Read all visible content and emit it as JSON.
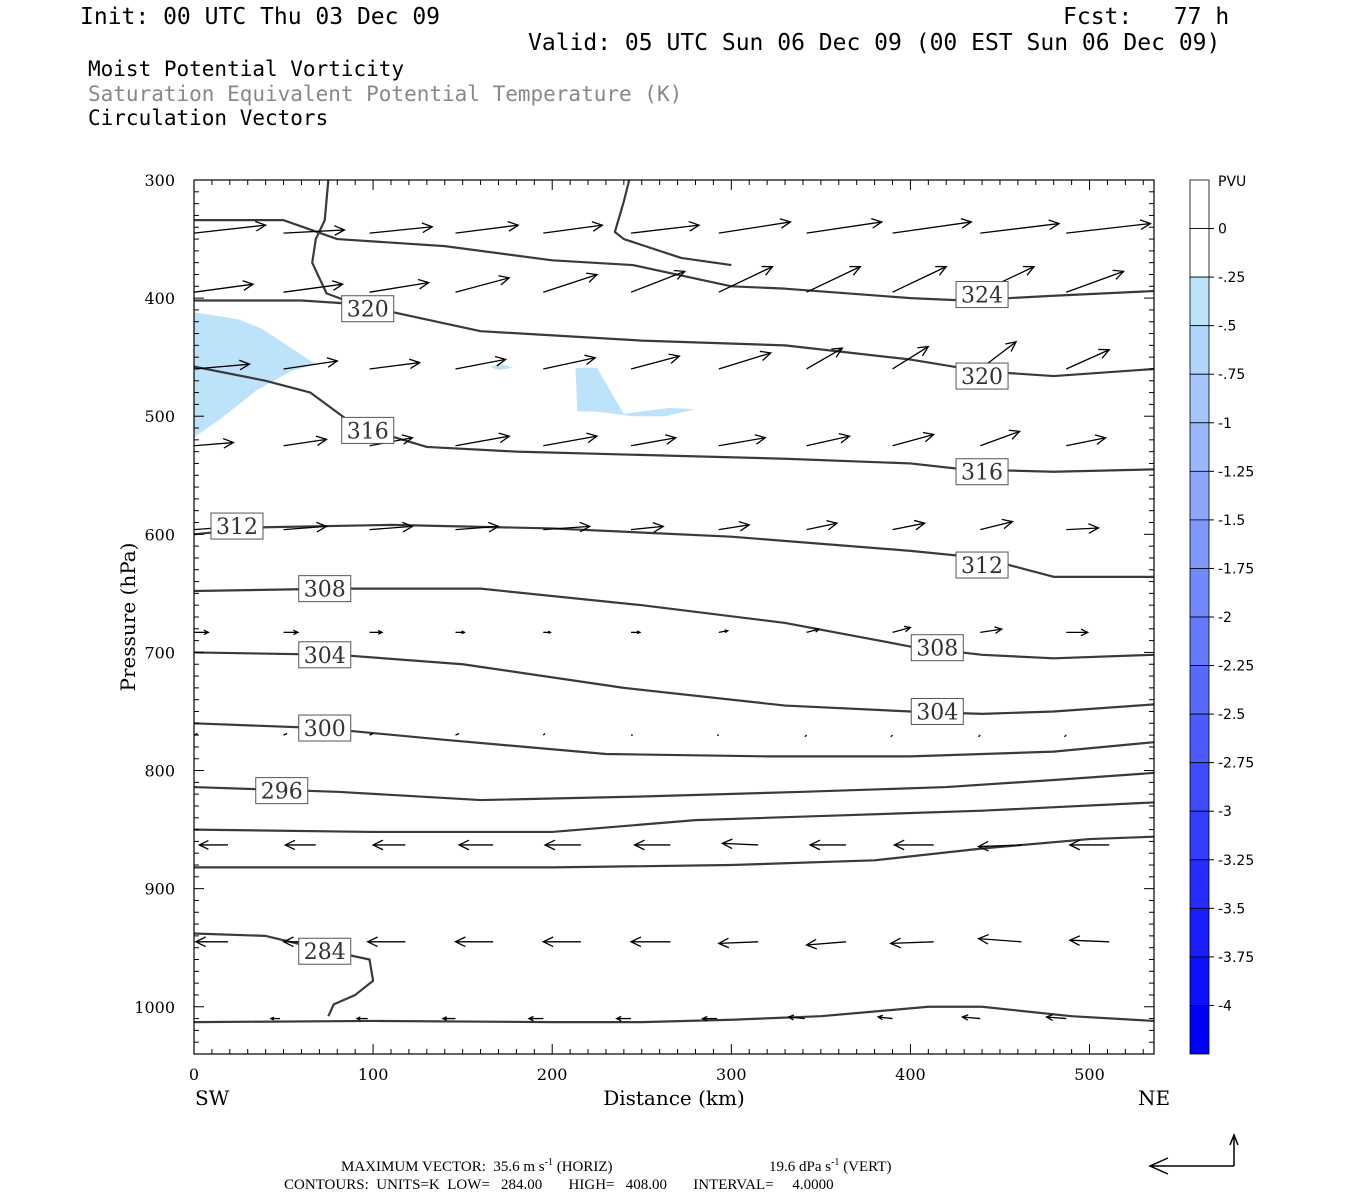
{
  "header": {
    "init": "Init: 00 UTC Thu 03 Dec 09",
    "fcst": "Fcst:   77 h",
    "valid": "Valid: 05 UTC Sun 06 Dec 09 (00 EST Sun 06 Dec 09)",
    "field1": "Moist Potential Vorticity",
    "field2": "Saturation Equivalent Potential Temperature (K)",
    "field3": "Circulation Vectors"
  },
  "footer": {
    "max_vector_prefix": "MAXIMUM VECTOR:  35.6 m s",
    "max_vector_horiz": " (HORIZ)",
    "max_vector_vert_prefix": "19.6 dPa s",
    "max_vector_vert": " (VERT)",
    "exponent": "-1",
    "contours": "CONTOURS:  UNITS=K  LOW=   284.00       HIGH=   408.00       INTERVAL=     4.0000"
  },
  "colors": {
    "contour": "#3a3a3a",
    "fill_light": "#bde3fb",
    "axis": "#000000",
    "colorbar_top": "#ffffff",
    "colorbar_bottom": "#0000ff"
  },
  "chart_data": {
    "type": "cross-section",
    "xlabel": "Distance (km)",
    "ylabel": "Pressure (hPa)",
    "xlim": [
      0,
      536
    ],
    "ylim": [
      1040,
      300
    ],
    "x_ticks": [
      "0",
      "100",
      "200",
      "300",
      "400",
      "500"
    ],
    "y_ticks": [
      "300",
      "400",
      "500",
      "600",
      "700",
      "800",
      "900",
      "1000"
    ],
    "left_end_label": "SW",
    "right_end_label": "NE",
    "colorbar": {
      "unit": "PVU",
      "labels": [
        "0",
        "-.25",
        "-.5",
        "-.75",
        "-1",
        "-1.25",
        "-1.5",
        "-1.75",
        "-2",
        "-2.25",
        "-2.5",
        "-2.75",
        "-3",
        "-3.25",
        "-3.5",
        "-3.75",
        "-4"
      ]
    },
    "contours": [
      {
        "label": "324",
        "points": [
          [
            0,
            334
          ],
          [
            50,
            334
          ],
          [
            80,
            350
          ],
          [
            140,
            356
          ],
          [
            200,
            368
          ],
          [
            245,
            372
          ],
          [
            300,
            390
          ],
          [
            330,
            392
          ],
          [
            400,
            400
          ],
          [
            430,
            402
          ],
          [
            480,
            398
          ],
          [
            536,
            394
          ]
        ],
        "label_at": [
          440,
          397
        ]
      },
      {
        "label": "320",
        "points": [
          [
            0,
            402
          ],
          [
            60,
            402
          ],
          [
            90,
            405
          ],
          [
            160,
            428
          ],
          [
            250,
            436
          ],
          [
            330,
            440
          ],
          [
            400,
            452
          ],
          [
            440,
            462
          ],
          [
            480,
            466
          ],
          [
            536,
            460
          ]
        ],
        "label_at": [
          440,
          466
        ],
        "label2_at": [
          97,
          409
        ]
      },
      {
        "label": "316",
        "points": [
          [
            0,
            458
          ],
          [
            40,
            470
          ],
          [
            65,
            480
          ],
          [
            90,
            508
          ],
          [
            130,
            526
          ],
          [
            180,
            530
          ],
          [
            330,
            536
          ],
          [
            400,
            540
          ],
          [
            430,
            545
          ],
          [
            480,
            547
          ],
          [
            536,
            545
          ]
        ],
        "label_at": [
          440,
          547
        ],
        "label2_at": [
          97,
          512
        ]
      },
      {
        "label": "312",
        "points": [
          [
            0,
            600
          ],
          [
            40,
            594
          ],
          [
            110,
            592
          ],
          [
            200,
            595
          ],
          [
            300,
            602
          ],
          [
            400,
            614
          ],
          [
            440,
            620
          ],
          [
            480,
            636
          ],
          [
            536,
            636
          ]
        ],
        "label_at": [
          440,
          626
        ],
        "label2_at": [
          24,
          593
        ]
      },
      {
        "label": "308",
        "points": [
          [
            0,
            648
          ],
          [
            80,
            646
          ],
          [
            160,
            646
          ],
          [
            250,
            660
          ],
          [
            330,
            675
          ],
          [
            400,
            695
          ],
          [
            440,
            702
          ],
          [
            480,
            705
          ],
          [
            536,
            702
          ]
        ],
        "label_at": [
          415,
          696
        ],
        "label2_at": [
          73,
          646
        ]
      },
      {
        "label": "304",
        "points": [
          [
            0,
            700
          ],
          [
            80,
            702
          ],
          [
            150,
            710
          ],
          [
            240,
            730
          ],
          [
            330,
            745
          ],
          [
            400,
            750
          ],
          [
            440,
            752
          ],
          [
            480,
            750
          ],
          [
            536,
            744
          ]
        ],
        "label_at": [
          415,
          750
        ],
        "label2_at": [
          73,
          702
        ]
      },
      {
        "label": "300",
        "points": [
          [
            0,
            760
          ],
          [
            70,
            764
          ],
          [
            140,
            774
          ],
          [
            230,
            786
          ],
          [
            320,
            788
          ],
          [
            400,
            788
          ],
          [
            480,
            784
          ],
          [
            536,
            776
          ]
        ],
        "label_at": [
          73,
          764
        ]
      },
      {
        "label": "296",
        "points": [
          [
            0,
            814
          ],
          [
            80,
            818
          ],
          [
            160,
            825
          ],
          [
            250,
            822
          ],
          [
            340,
            818
          ],
          [
            420,
            814
          ],
          [
            480,
            808
          ],
          [
            536,
            802
          ]
        ],
        "label_at": [
          49,
          817
        ]
      },
      {
        "label": "",
        "points": [
          [
            0,
            850
          ],
          [
            100,
            852
          ],
          [
            200,
            852
          ],
          [
            280,
            842
          ],
          [
            360,
            838
          ],
          [
            440,
            834
          ],
          [
            536,
            827
          ]
        ]
      },
      {
        "label": "",
        "points": [
          [
            0,
            882
          ],
          [
            100,
            882
          ],
          [
            200,
            882
          ],
          [
            300,
            880
          ],
          [
            380,
            876
          ],
          [
            440,
            866
          ],
          [
            500,
            858
          ],
          [
            536,
            856
          ]
        ]
      },
      {
        "label": "284",
        "points": [
          [
            0,
            938
          ],
          [
            40,
            940
          ],
          [
            73,
            952
          ],
          [
            98,
            960
          ],
          [
            100,
            978
          ],
          [
            90,
            990
          ],
          [
            78,
            998
          ],
          [
            75,
            1008
          ]
        ],
        "label_at": [
          73,
          953
        ]
      },
      {
        "label": "",
        "points": [
          [
            0,
            1013
          ],
          [
            100,
            1012
          ],
          [
            200,
            1013
          ],
          [
            250,
            1013
          ],
          [
            300,
            1011
          ],
          [
            350,
            1008
          ],
          [
            410,
            1000
          ],
          [
            440,
            1000
          ],
          [
            490,
            1008
          ],
          [
            536,
            1012
          ]
        ]
      },
      {
        "label": "",
        "points": [
          [
            243,
            300
          ],
          [
            240,
            318
          ],
          [
            235,
            344
          ],
          [
            240,
            350
          ],
          [
            272,
            366
          ],
          [
            300,
            372
          ]
        ]
      },
      {
        "label": "",
        "points": [
          [
            75,
            300
          ],
          [
            73,
            334
          ],
          [
            68,
            350
          ],
          [
            66,
            370
          ],
          [
            74,
            396
          ],
          [
            90,
            405
          ]
        ]
      }
    ],
    "pv_fills": [
      {
        "value": "-.5",
        "points": [
          [
            0,
            412
          ],
          [
            25,
            418
          ],
          [
            38,
            426
          ],
          [
            60,
            448
          ],
          [
            68,
            456
          ],
          [
            54,
            462
          ],
          [
            35,
            478
          ],
          [
            15,
            502
          ],
          [
            0,
            518
          ]
        ]
      },
      {
        "value": "-.5",
        "points": [
          [
            213,
            459
          ],
          [
            225,
            459
          ],
          [
            240,
            498
          ],
          [
            265,
            493
          ],
          [
            280,
            494
          ],
          [
            263,
            500
          ],
          [
            245,
            500
          ],
          [
            224,
            496
          ],
          [
            214,
            496
          ]
        ]
      },
      {
        "value": "-.5",
        "points": [
          [
            165,
            458
          ],
          [
            172,
            456
          ],
          [
            178,
            459
          ],
          [
            170,
            461
          ]
        ]
      }
    ],
    "vectors": [
      {
        "p": 345,
        "x": [
          0,
          50,
          98,
          146,
          195,
          244,
          293,
          342,
          390,
          439,
          487
        ],
        "dx": [
          40,
          34,
          35,
          35,
          33,
          38,
          40,
          42,
          44,
          44,
          47
        ],
        "dy": [
          -5,
          -2,
          -4,
          -5,
          -5,
          -5,
          -7,
          -7,
          -7,
          -6,
          -6
        ]
      },
      {
        "p": 395,
        "x": [
          0,
          50,
          98,
          146,
          195,
          244,
          293,
          342,
          390,
          439,
          487
        ],
        "dx": [
          33,
          33,
          33,
          30,
          30,
          30,
          30,
          30,
          30,
          30,
          32
        ],
        "dy": [
          -5,
          -5,
          -6,
          -9,
          -11,
          -13,
          -16,
          -16,
          -16,
          -16,
          -13
        ]
      },
      {
        "p": 460,
        "x": [
          0,
          50,
          98,
          146,
          195,
          244,
          293,
          342,
          390,
          439,
          487
        ],
        "dx": [
          31,
          30,
          28,
          28,
          29,
          27,
          29,
          20,
          20,
          20,
          24
        ],
        "dy": [
          -3,
          -5,
          -4,
          -6,
          -7,
          -8,
          -10,
          -13,
          -14,
          -17,
          -12
        ]
      },
      {
        "p": 525,
        "x": [
          0,
          50,
          98,
          146,
          195,
          244,
          293,
          342,
          390,
          439,
          487
        ],
        "dx": [
          22,
          24,
          24,
          30,
          30,
          25,
          26,
          24,
          23,
          22,
          22
        ],
        "dy": [
          -2,
          -4,
          -5,
          -6,
          -6,
          -5,
          -5,
          -6,
          -7,
          -9,
          -5
        ]
      },
      {
        "p": 596,
        "x": [
          0,
          50,
          98,
          146,
          195,
          244,
          293,
          342,
          390,
          439,
          487
        ],
        "dx": [
          24,
          24,
          24,
          24,
          26,
          18,
          17,
          17,
          18,
          18,
          18
        ],
        "dy": [
          -2,
          -2,
          -2,
          -2,
          -2,
          -2,
          -3,
          -4,
          -4,
          -5,
          -1
        ]
      },
      {
        "p": 683,
        "x": [
          0,
          50,
          98,
          146,
          195,
          244,
          293,
          342,
          390,
          439,
          487
        ],
        "dx": [
          8,
          8,
          7,
          5,
          4,
          5,
          5,
          7,
          10,
          12,
          12
        ],
        "dy": [
          0,
          0,
          0,
          0,
          0,
          0,
          -1,
          -2,
          -3,
          -2,
          0
        ]
      },
      {
        "p": 770,
        "x": [
          0,
          50,
          98,
          146,
          195,
          244,
          293,
          342,
          390,
          439,
          487
        ],
        "dx": [
          2,
          2,
          2,
          2,
          1,
          1,
          -1,
          -1,
          -1,
          -1,
          -1
        ],
        "dy": [
          -1,
          -1,
          -1,
          -1,
          -1,
          0,
          0,
          1,
          1,
          1,
          1
        ]
      },
      {
        "p": 863,
        "x": [
          19,
          68,
          118,
          167,
          216,
          266,
          315,
          364,
          413,
          462,
          511
        ],
        "dx": [
          -16,
          -17,
          -18,
          -19,
          -20,
          -20,
          -20,
          -20,
          -22,
          -24,
          -22
        ],
        "dy": [
          0,
          0,
          0,
          0,
          0,
          0,
          -1,
          0,
          0,
          1,
          0
        ]
      },
      {
        "p": 945,
        "x": [
          19,
          68,
          118,
          167,
          216,
          266,
          315,
          364,
          413,
          462,
          511
        ],
        "dx": [
          -18,
          -18,
          -21,
          -21,
          -21,
          -22,
          -22,
          -22,
          -24,
          -24,
          -22
        ],
        "dy": [
          0,
          0,
          0,
          0,
          0,
          0,
          1,
          2,
          1,
          -2,
          -1
        ]
      },
      {
        "p": 1010,
        "x": [
          48,
          97,
          146,
          195,
          244,
          292,
          341,
          390,
          439,
          487
        ],
        "dx": [
          -5,
          -6,
          -7,
          -8,
          -8,
          -8,
          -9,
          -8,
          -10,
          -11
        ],
        "dy": [
          0,
          0,
          0,
          0,
          0,
          0,
          -1,
          -1,
          -1,
          -1
        ]
      }
    ]
  }
}
